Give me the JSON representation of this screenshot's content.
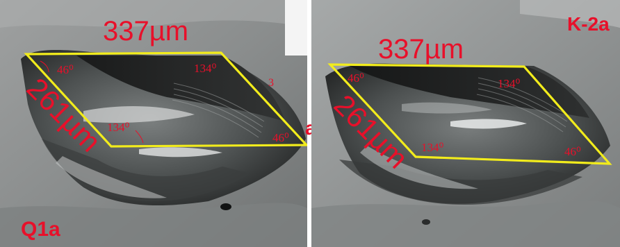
{
  "left_panel": {
    "top_length": "337µm",
    "side_length": "261µm",
    "angle_top_left": "46⁰",
    "angle_top_right": "134⁰",
    "angle_bottom_left": "134⁰",
    "angle_bottom_right": "46⁰",
    "mark_3": "3",
    "mark_a": "a",
    "panel_label": "Q1a"
  },
  "right_panel": {
    "top_length": "337µm",
    "side_length": "261µm",
    "angle_top_left": "46⁰",
    "angle_top_right": "134⁰",
    "angle_bottom_left": "134⁰",
    "angle_bottom_right": "46⁰",
    "panel_label": "K-2a"
  },
  "colors": {
    "outline": "#f2ec1c",
    "label": "#e8102a"
  }
}
